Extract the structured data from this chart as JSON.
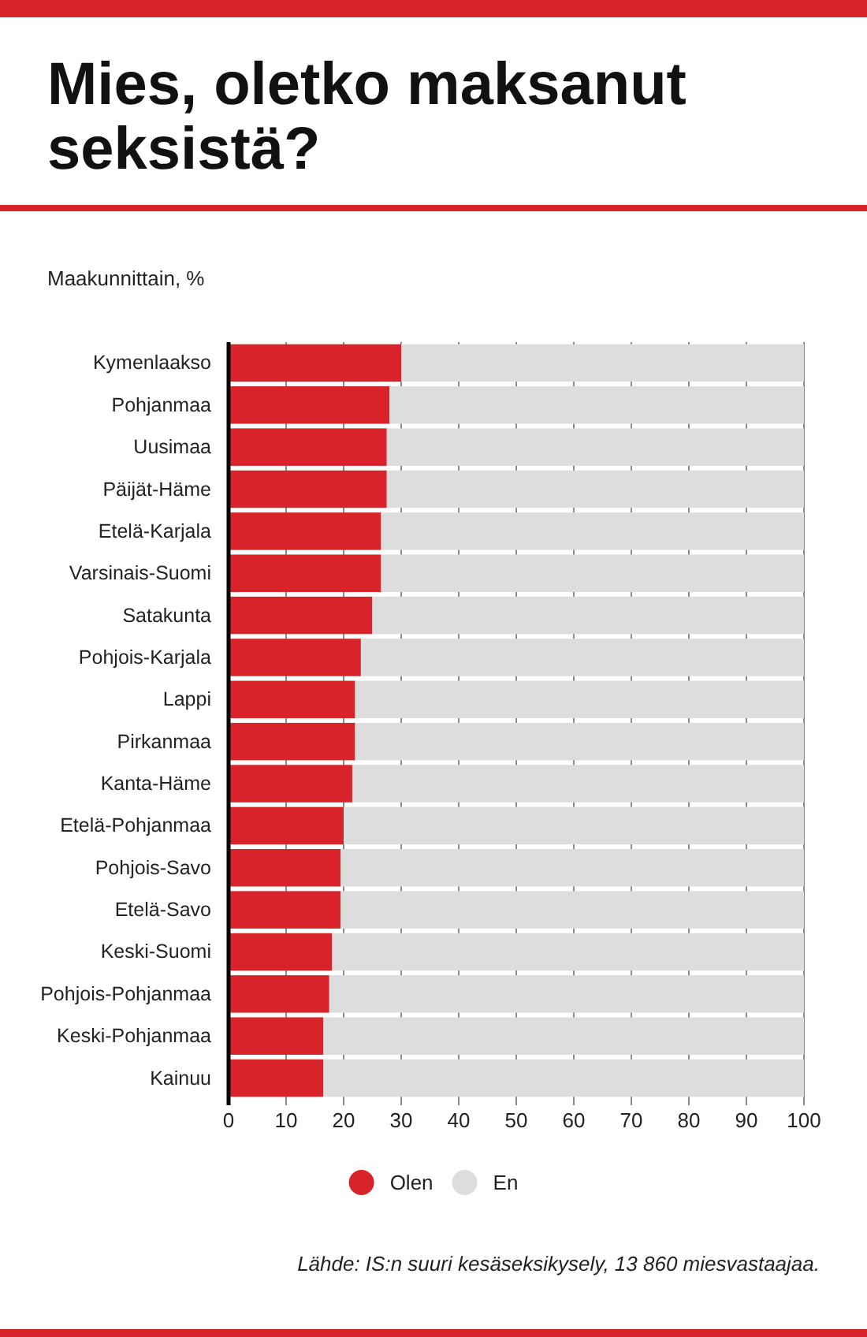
{
  "chart_data": {
    "type": "bar",
    "orientation": "horizontal",
    "stacked": true,
    "title": "Mies, oletko maksanut seksistä?",
    "subtitle": "Maakunnittain, %",
    "annotations": [
      "Lähde: IS:n suuri kesäseksikysely, 13 860 miesvastaajaa."
    ],
    "categories": [
      "Kymenlaakso",
      "Pohjanmaa",
      "Uusimaa",
      "Päijät-Häme",
      "Etelä-Karjala",
      "Varsinais-Suomi",
      "Satakunta",
      "Pohjois-Karjala",
      "Lappi",
      "Pirkanmaa",
      "Kanta-Häme",
      "Etelä-Pohjanmaa",
      "Pohjois-Savo",
      "Etelä-Savo",
      "Keski-Suomi",
      "Pohjois-Pohjanmaa",
      "Keski-Pohjanmaa",
      "Kainuu"
    ],
    "series": [
      {
        "name": "Olen",
        "color": "#d9232a",
        "values": [
          30,
          28,
          27.5,
          27.5,
          26.5,
          26.5,
          25,
          23,
          22,
          22,
          21.5,
          20,
          19.5,
          19.5,
          18,
          17.5,
          16.5,
          16.5
        ]
      },
      {
        "name": "En",
        "color": "#dddddd",
        "values": [
          70,
          72,
          72.5,
          72.5,
          73.5,
          73.5,
          75,
          77,
          78,
          78,
          78.5,
          80,
          80.5,
          80.5,
          82,
          82.5,
          83.5,
          83.5
        ]
      }
    ],
    "xlim": [
      0,
      100
    ],
    "xticks": [
      0,
      10,
      20,
      30,
      40,
      50,
      60,
      70,
      80,
      90,
      100
    ],
    "grid": "x",
    "legend": "bottom"
  }
}
